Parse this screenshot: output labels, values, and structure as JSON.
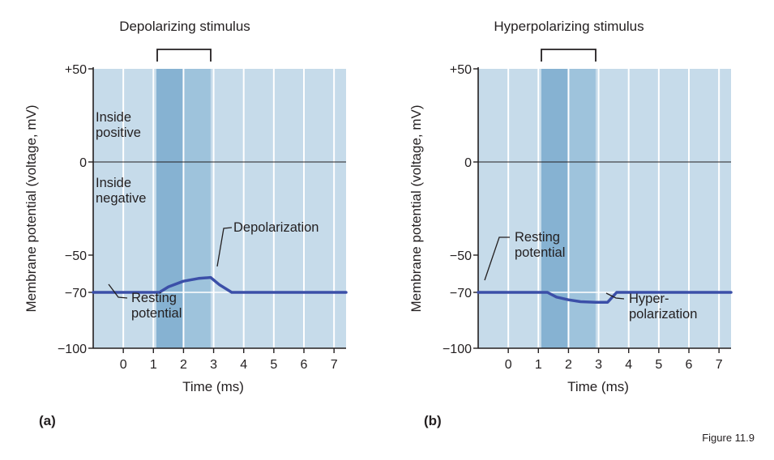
{
  "figure_label": "Figure 11.9",
  "colors": {
    "background": "#c6dbea",
    "stimulus_dark": "#86b2d2",
    "stimulus_mid": "#9ec3dc",
    "trace": "#3b4fa8",
    "grid": "#ffffff",
    "zero_line": "#231f20"
  },
  "chart_data": [
    {
      "type": "line",
      "panel": "(a)",
      "stimulus_label": "Depolarizing stimulus",
      "xlabel": "Time (ms)",
      "ylabel": "Membrane potential (voltage, mV)",
      "xlim": [
        -1,
        7.4
      ],
      "ylim": [
        -100,
        50
      ],
      "x_ticks": [
        0,
        1,
        2,
        3,
        4,
        5,
        6,
        7
      ],
      "x_tick_labels": [
        "0",
        "1",
        "2",
        "3",
        "4",
        "5",
        "6",
        "7"
      ],
      "y_ticks": [
        50,
        0,
        -50,
        -70,
        -100
      ],
      "y_tick_labels": [
        "+50",
        "0",
        "−50",
        "−70",
        "−100"
      ],
      "stimulus_window": [
        1.1,
        2.9
      ],
      "series": [
        {
          "name": "Membrane potential",
          "x": [
            -1,
            1.2,
            1.5,
            2,
            2.5,
            2.9,
            3.2,
            3.6,
            7.4
          ],
          "y": [
            -70,
            -70,
            -67,
            -64,
            -62.5,
            -62,
            -66,
            -70,
            -70
          ]
        }
      ],
      "annotations": {
        "inside_positive": [
          "Inside",
          "positive"
        ],
        "inside_negative": [
          "Inside",
          "negative"
        ],
        "effect": [
          "Depolarization"
        ],
        "resting": [
          "Resting",
          "potential"
        ]
      }
    },
    {
      "type": "line",
      "panel": "(b)",
      "stimulus_label": "Hyperpolarizing stimulus",
      "xlabel": "Time (ms)",
      "ylabel": "Membrane potential (voltage, mV)",
      "xlim": [
        -1,
        7.4
      ],
      "ylim": [
        -100,
        50
      ],
      "x_ticks": [
        0,
        1,
        2,
        3,
        4,
        5,
        6,
        7
      ],
      "x_tick_labels": [
        "0",
        "1",
        "2",
        "3",
        "4",
        "5",
        "6",
        "7"
      ],
      "y_ticks": [
        50,
        0,
        -50,
        -70,
        -100
      ],
      "y_tick_labels": [
        "+50",
        "0",
        "−50",
        "−70",
        "−100"
      ],
      "stimulus_window": [
        1.1,
        2.9
      ],
      "series": [
        {
          "name": "Membrane potential",
          "x": [
            -1,
            1.3,
            1.6,
            2,
            2.4,
            2.9,
            3.3,
            3.6,
            7.4
          ],
          "y": [
            -70,
            -70,
            -72.5,
            -74,
            -75,
            -75.3,
            -75.3,
            -70,
            -70
          ]
        }
      ],
      "annotations": {
        "resting": [
          "Resting",
          "potential"
        ],
        "effect": [
          "Hyper-",
          "polarization"
        ]
      }
    }
  ]
}
